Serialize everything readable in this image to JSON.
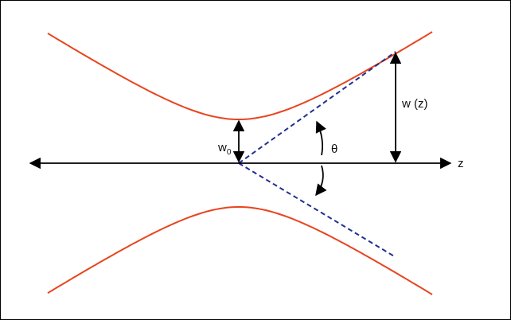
{
  "labels": {
    "waist": {
      "text": "w",
      "subscript": "0"
    },
    "beam_radius": "w (z)",
    "angle": "θ",
    "axis": "z"
  }
}
